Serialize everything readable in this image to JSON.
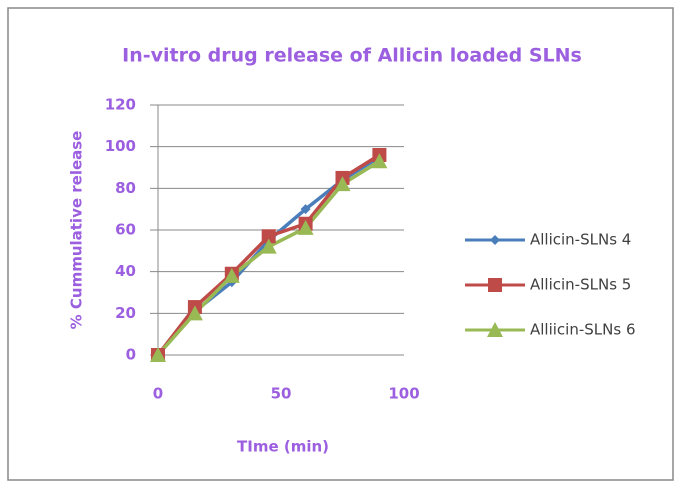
{
  "chart_data": {
    "type": "line",
    "title": "In-vitro drug release of Allicin loaded SLNs",
    "x_label": "TIme (min)",
    "y_label": "% Cummulative release",
    "x": [
      0,
      15,
      30,
      45,
      60,
      75,
      90
    ],
    "series": [
      {
        "name": "Allicin-SLNs 4",
        "color": "#4a7ebb",
        "marker": "diamond",
        "values": [
          0,
          21,
          35,
          55,
          70,
          84,
          95
        ]
      },
      {
        "name": "Allicin-SLNs 5",
        "color": "#be4b48",
        "marker": "square",
        "values": [
          0,
          23,
          39,
          57,
          63,
          85,
          96
        ]
      },
      {
        "name": "Alliicin-SLNs 6",
        "color": "#98b954",
        "marker": "triangle",
        "values": [
          0,
          20,
          38,
          52,
          61,
          82,
          93
        ]
      }
    ],
    "xlim": [
      0,
      100
    ],
    "xticks": [
      0,
      50,
      100
    ],
    "ylim": [
      0,
      120
    ],
    "yticks": [
      0,
      20,
      40,
      60,
      80,
      100,
      120
    ],
    "grid": true,
    "legend": "right"
  }
}
